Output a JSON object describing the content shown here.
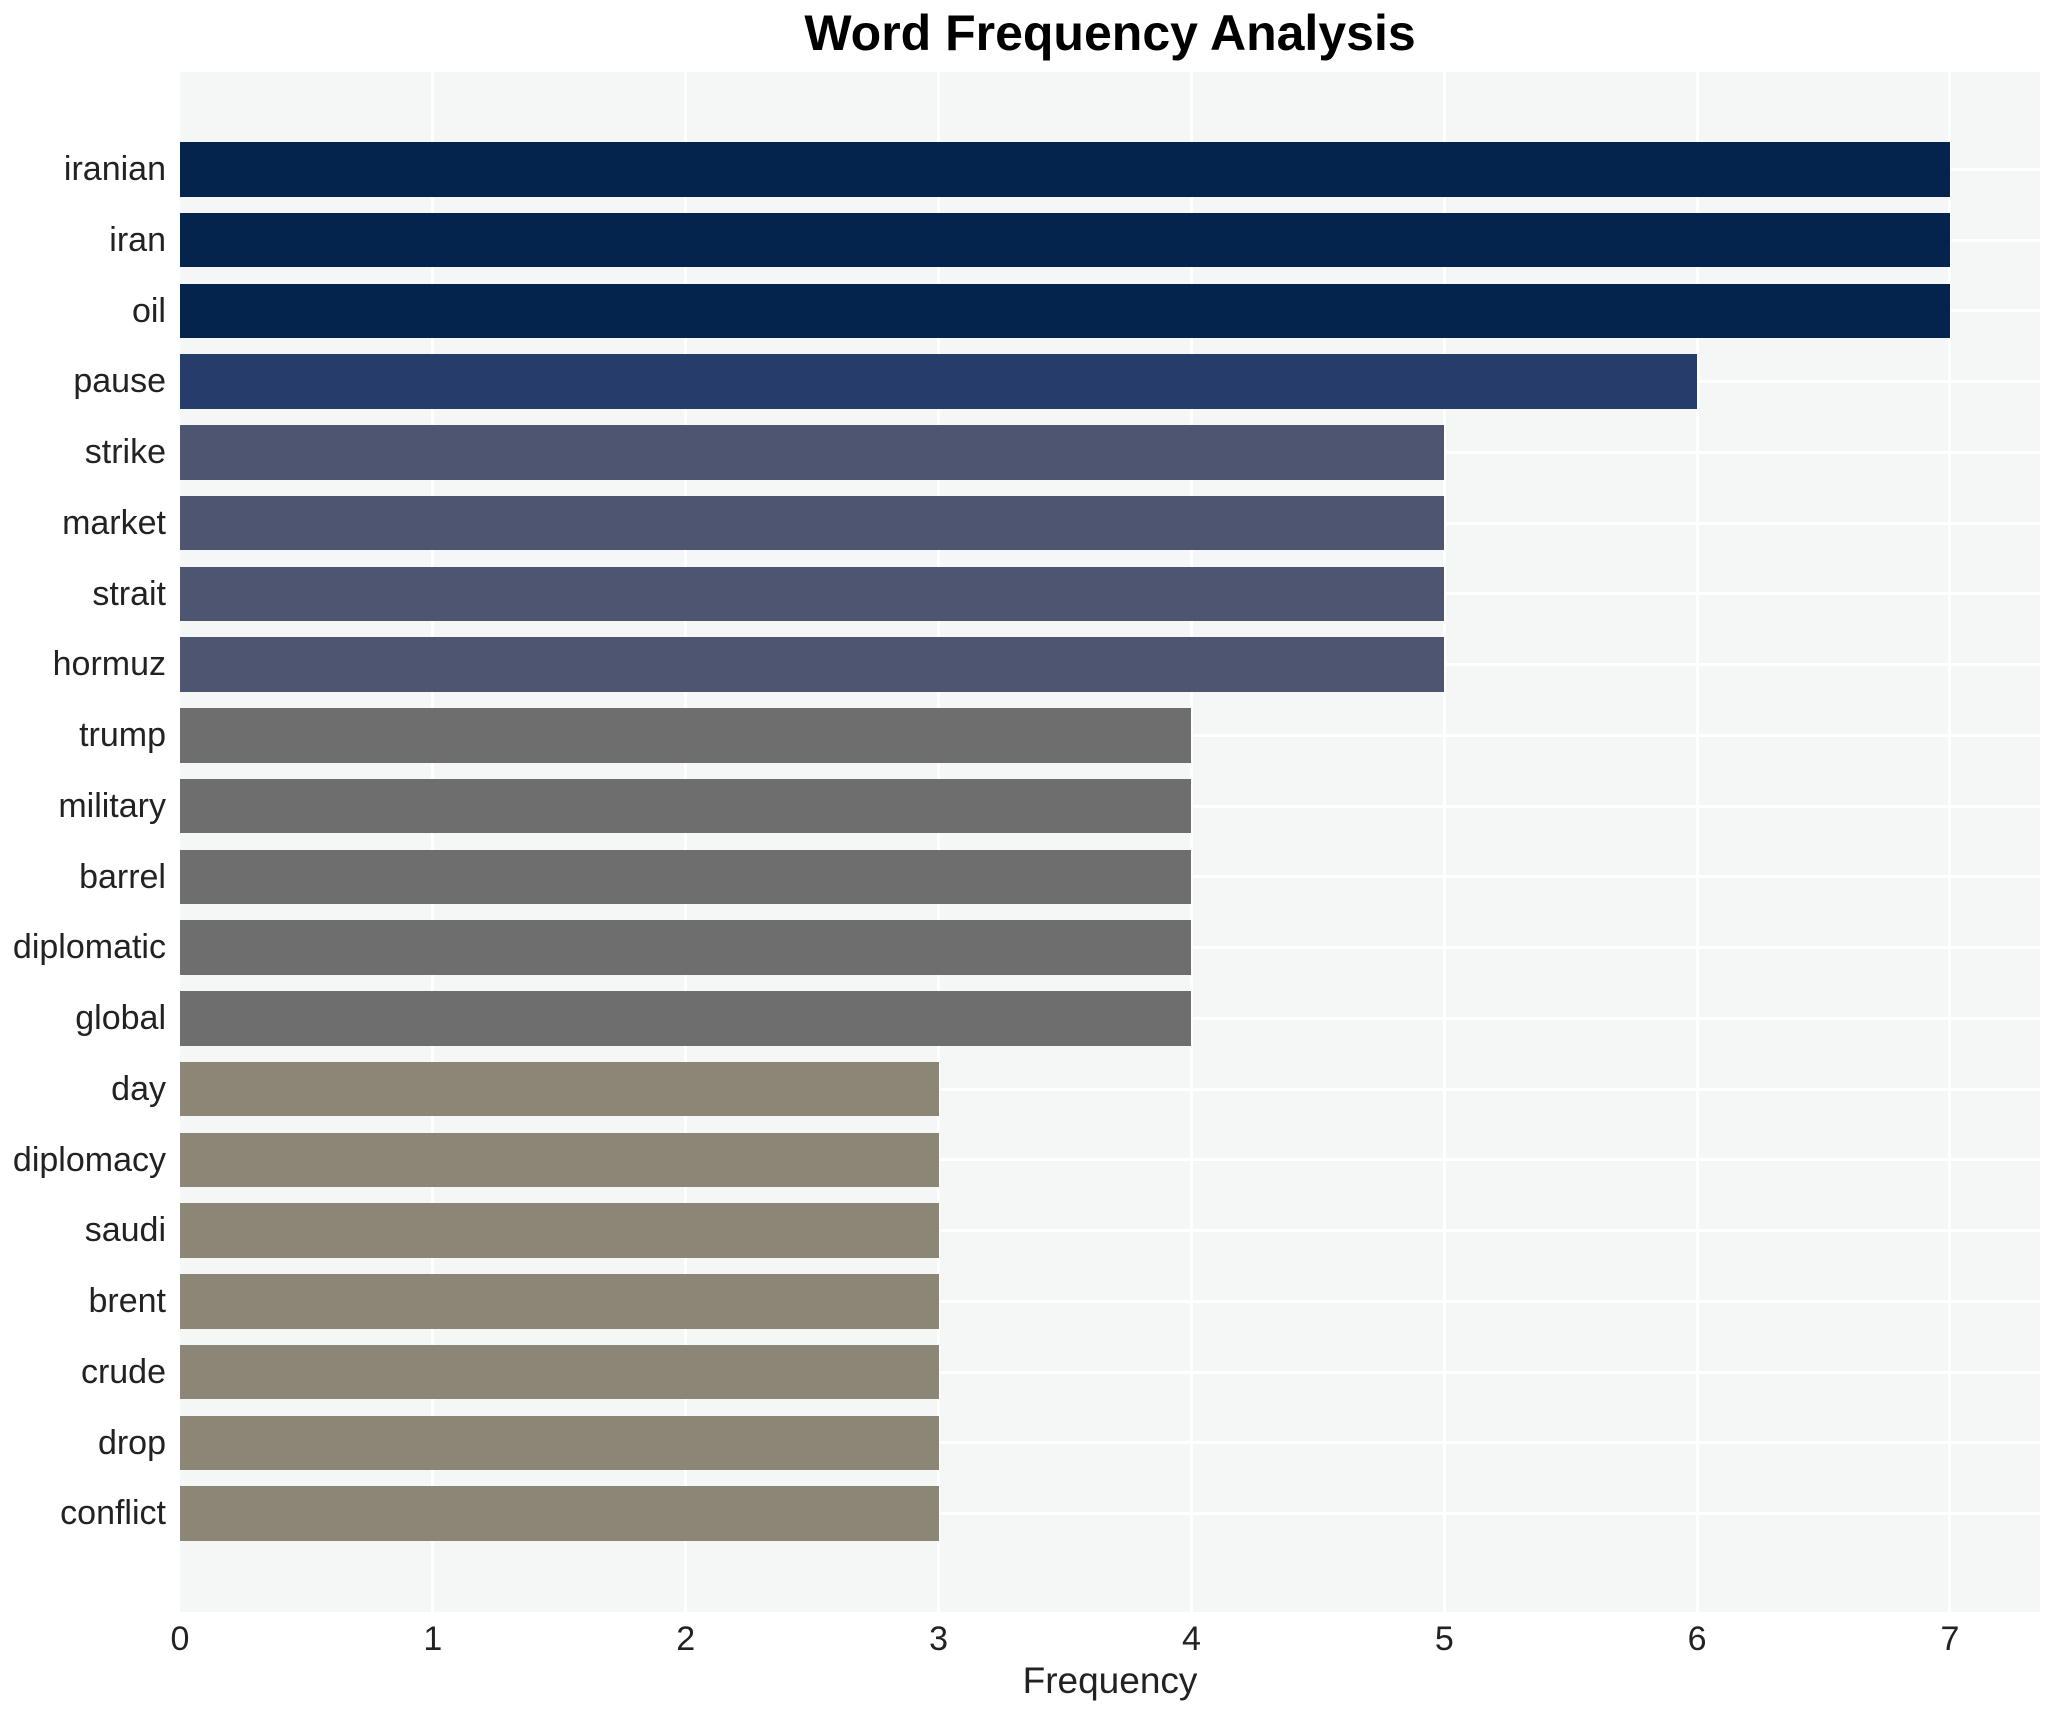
{
  "title": "Word Frequency Analysis",
  "chart_data": {
    "type": "bar",
    "orientation": "horizontal",
    "title": "Word Frequency Analysis",
    "xlabel": "Frequency",
    "ylabel": "",
    "xlim": [
      0,
      7.36
    ],
    "x_ticks": [
      0,
      1,
      2,
      3,
      4,
      5,
      6,
      7
    ],
    "grid": true,
    "legend": "none",
    "categories": [
      "iranian",
      "iran",
      "oil",
      "pause",
      "strike",
      "market",
      "strait",
      "hormuz",
      "trump",
      "military",
      "barrel",
      "diplomatic",
      "global",
      "day",
      "diplomacy",
      "saudi",
      "brent",
      "crude",
      "drop",
      "conflict"
    ],
    "values": [
      7,
      7,
      7,
      6,
      5,
      5,
      5,
      5,
      4,
      4,
      4,
      4,
      4,
      3,
      3,
      3,
      3,
      3,
      3,
      3
    ],
    "bar_colors": [
      "#04234d",
      "#04234d",
      "#04234d",
      "#263c6b",
      "#4d5570",
      "#4d5570",
      "#4d5570",
      "#4d5570",
      "#6e6e6f",
      "#6e6e6f",
      "#6e6e6f",
      "#6e6e6f",
      "#6e6e6f",
      "#8c8676",
      "#8c8676",
      "#8c8676",
      "#8c8676",
      "#8c8676",
      "#8c8676",
      "#8c8676"
    ],
    "plot_background": "#f5f6f6",
    "grid_color": "#ffffff",
    "text_color": "#222222"
  }
}
